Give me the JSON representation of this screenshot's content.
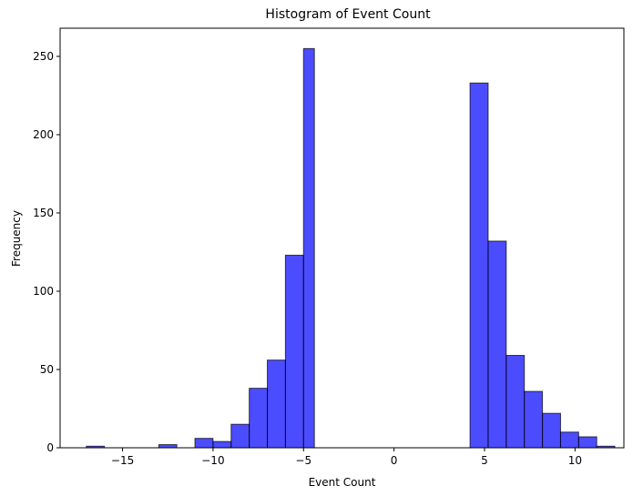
{
  "chart_data": {
    "type": "bar",
    "title": "Histogram of Event Count",
    "xlabel": "Event Count",
    "ylabel": "Frequency",
    "xlim": [
      -18.45,
      12.7
    ],
    "ylim": [
      0,
      268
    ],
    "bar_color": "#0000ff",
    "bar_edge_color": "#000000",
    "xticks": [
      {
        "value": -15,
        "label": "−15"
      },
      {
        "value": -10,
        "label": "−10"
      },
      {
        "value": -5,
        "label": "−5"
      },
      {
        "value": 0,
        "label": "0"
      },
      {
        "value": 5,
        "label": "5"
      },
      {
        "value": 10,
        "label": "10"
      }
    ],
    "yticks": [
      {
        "value": 0,
        "label": "0"
      },
      {
        "value": 50,
        "label": "50"
      },
      {
        "value": 100,
        "label": "100"
      },
      {
        "value": 150,
        "label": "150"
      },
      {
        "value": 200,
        "label": "200"
      },
      {
        "value": 250,
        "label": "250"
      }
    ],
    "bins": [
      {
        "x0": -17.0,
        "x1": -16.0,
        "count": 1
      },
      {
        "x0": -13.0,
        "x1": -12.0,
        "count": 2
      },
      {
        "x0": -11.0,
        "x1": -10.0,
        "count": 6
      },
      {
        "x0": -10.0,
        "x1": -9.0,
        "count": 4
      },
      {
        "x0": -9.0,
        "x1": -8.0,
        "count": 15
      },
      {
        "x0": -8.0,
        "x1": -7.0,
        "count": 38
      },
      {
        "x0": -7.0,
        "x1": -6.0,
        "count": 56
      },
      {
        "x0": -6.0,
        "x1": -5.0,
        "count": 123
      },
      {
        "x0": -5.0,
        "x1": -4.4,
        "count": 255
      },
      {
        "x0": 4.2,
        "x1": 5.2,
        "count": 233
      },
      {
        "x0": 5.2,
        "x1": 6.2,
        "count": 132
      },
      {
        "x0": 6.2,
        "x1": 7.2,
        "count": 59
      },
      {
        "x0": 7.2,
        "x1": 8.2,
        "count": 36
      },
      {
        "x0": 8.2,
        "x1": 9.2,
        "count": 22
      },
      {
        "x0": 9.2,
        "x1": 10.2,
        "count": 10
      },
      {
        "x0": 10.2,
        "x1": 11.2,
        "count": 7
      },
      {
        "x0": 11.2,
        "x1": 12.2,
        "count": 1
      }
    ]
  }
}
